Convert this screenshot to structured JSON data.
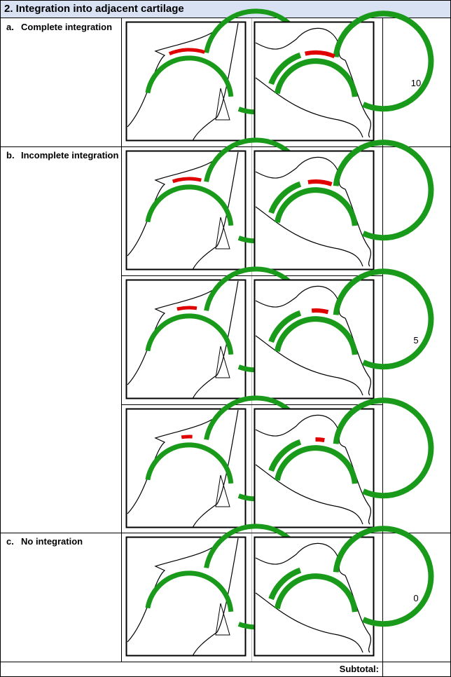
{
  "section_title": "2. Integration into adjacent cartilage",
  "options": [
    {
      "letter": "a.",
      "label": "Complete integration",
      "score": "10"
    },
    {
      "letter": "b.",
      "label": "Incomplete integration",
      "score": "5"
    },
    {
      "letter": "c.",
      "label": "No integration",
      "score": "0"
    }
  ],
  "subtotal_label": "Subtotal:",
  "colors": {
    "header_bg": "#d9e2f3",
    "cartilage": "#1a9a1a",
    "repair_tissue": "#e00000",
    "outline": "#000000"
  },
  "figure_panels": [
    {
      "view": "front",
      "row": 1,
      "repair_extent": 1.0
    },
    {
      "view": "oblique",
      "row": 1,
      "repair_extent": 1.0
    },
    {
      "view": "front",
      "row": 2,
      "repair_extent": 0.8
    },
    {
      "view": "oblique",
      "row": 2,
      "repair_extent": 0.8
    },
    {
      "view": "front",
      "row": 3,
      "repair_extent": 0.55
    },
    {
      "view": "oblique",
      "row": 3,
      "repair_extent": 0.55
    },
    {
      "view": "front",
      "row": 4,
      "repair_extent": 0.3
    },
    {
      "view": "oblique",
      "row": 4,
      "repair_extent": 0.3
    },
    {
      "view": "front",
      "row": 5,
      "repair_extent": 0.0
    },
    {
      "view": "oblique",
      "row": 5,
      "repair_extent": 0.0
    }
  ]
}
